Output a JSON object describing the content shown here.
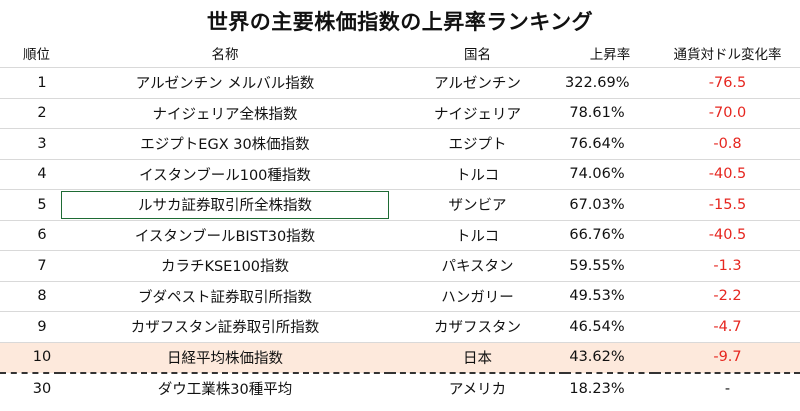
{
  "title": "世界の主要株価指数の上昇率ランキング",
  "headers": {
    "rank": "順位",
    "name": "名称",
    "country": "国名",
    "rate": "上昇率",
    "fx": "通貨対ドル変化率"
  },
  "rows": [
    {
      "rank": "1",
      "name": "アルゼンチン メルバル指数",
      "country": "アルゼンチン",
      "rate": "322.69%",
      "fx": "-76.5"
    },
    {
      "rank": "2",
      "name": "ナイジェリア全株指数",
      "country": "ナイジェリア",
      "rate": "78.61%",
      "fx": "-70.0"
    },
    {
      "rank": "3",
      "name": "エジプトEGX 30株価指数",
      "country": "エジプト",
      "rate": "76.64%",
      "fx": "-0.8"
    },
    {
      "rank": "4",
      "name": "イスタンブール100種指数",
      "country": "トルコ",
      "rate": "74.06%",
      "fx": "-40.5"
    },
    {
      "rank": "5",
      "name": "ルサカ証券取引所全株指数",
      "country": "ザンビア",
      "rate": "67.03%",
      "fx": "-15.5"
    },
    {
      "rank": "6",
      "name": "イスタンブールBIST30指数",
      "country": "トルコ",
      "rate": "66.76%",
      "fx": "-40.5"
    },
    {
      "rank": "7",
      "name": "カラチKSE100指数",
      "country": "パキスタン",
      "rate": "59.55%",
      "fx": "-1.3"
    },
    {
      "rank": "8",
      "name": "ブダペスト証券取引所指数",
      "country": "ハンガリー",
      "rate": "49.53%",
      "fx": "-2.2"
    },
    {
      "rank": "9",
      "name": "カザフスタン証券取引所指数",
      "country": "カザフスタン",
      "rate": "46.54%",
      "fx": "-4.7"
    },
    {
      "rank": "10",
      "name": "日経平均株価指数",
      "country": "日本",
      "rate": "43.62%",
      "fx": "-9.7"
    },
    {
      "rank": "30",
      "name": "ダウ工業株30種平均",
      "country": "アメリカ",
      "rate": "18.23%",
      "fx": "-"
    }
  ],
  "colors": {
    "negative_change": "#e6261f",
    "highlight_row": "#fde9dc",
    "selected_cell_border": "#1e6b34"
  }
}
